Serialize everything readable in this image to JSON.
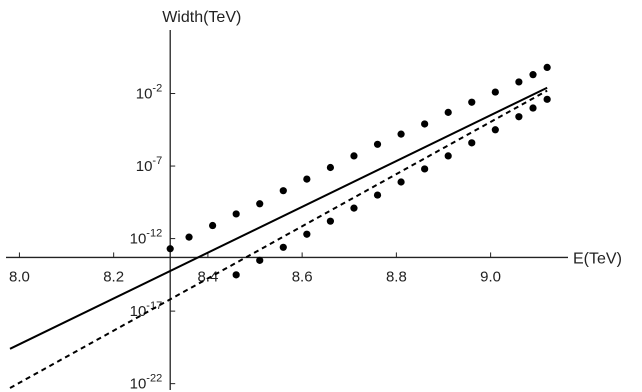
{
  "chart_data": {
    "type": "line",
    "xlabel": "E(TeV)",
    "ylabel": "Width(TeV)",
    "x_ticks": [
      {
        "value": 8.0,
        "label": "8.0"
      },
      {
        "value": 8.2,
        "label": "8.2"
      },
      {
        "value": 8.4,
        "label": "8.4"
      },
      {
        "value": 8.6,
        "label": "8.6"
      },
      {
        "value": 8.8,
        "label": "8.8"
      },
      {
        "value": 9.0,
        "label": "9.0"
      }
    ],
    "y_ticks": [
      {
        "value": -2,
        "base": "10",
        "exponent": "-2"
      },
      {
        "value": -7,
        "base": "10",
        "exponent": "-7"
      },
      {
        "value": -12,
        "base": "10",
        "exponent": "-12"
      },
      {
        "value": -17,
        "base": "10",
        "exponent": "-17"
      },
      {
        "value": -22,
        "base": "10",
        "exponent": "-22"
      }
    ],
    "xlim": [
      7.98,
      9.16
    ],
    "ylim_log10": [
      -22.3,
      1.0
    ],
    "y_scale": "log",
    "axis_crossing": {
      "x": 8.32,
      "y_log10": -13.3
    },
    "grid": false,
    "series": [
      {
        "style": "solid",
        "color": "#000000",
        "line": [
          [
            7.98,
            -19.6
          ],
          [
            9.12,
            -1.6
          ]
        ],
        "markers": [
          [
            8.32,
            -12.7
          ],
          [
            8.36,
            -11.9
          ],
          [
            8.41,
            -11.1
          ],
          [
            8.46,
            -10.3
          ],
          [
            8.51,
            -9.6
          ],
          [
            8.56,
            -8.7
          ],
          [
            8.61,
            -7.9
          ],
          [
            8.66,
            -7.1
          ],
          [
            8.71,
            -6.3
          ],
          [
            8.76,
            -5.5
          ],
          [
            8.81,
            -4.8
          ],
          [
            8.86,
            -4.1
          ],
          [
            8.91,
            -3.3
          ],
          [
            8.96,
            -2.6
          ],
          [
            9.01,
            -1.9
          ],
          [
            9.06,
            -1.2
          ],
          [
            9.09,
            -0.7
          ],
          [
            9.12,
            -0.2
          ]
        ]
      },
      {
        "style": "dashed",
        "color": "#000000",
        "line": [
          [
            7.98,
            -22.3
          ],
          [
            9.12,
            -1.8
          ]
        ],
        "markers": [
          [
            8.46,
            -14.5
          ],
          [
            8.51,
            -13.5
          ],
          [
            8.56,
            -12.6
          ],
          [
            8.61,
            -11.7
          ],
          [
            8.66,
            -10.8
          ],
          [
            8.71,
            -9.9
          ],
          [
            8.76,
            -9.0
          ],
          [
            8.81,
            -8.1
          ],
          [
            8.86,
            -7.2
          ],
          [
            8.91,
            -6.3
          ],
          [
            8.96,
            -5.4
          ],
          [
            9.01,
            -4.5
          ],
          [
            9.06,
            -3.6
          ],
          [
            9.09,
            -3.0
          ],
          [
            9.12,
            -2.4
          ]
        ]
      }
    ]
  }
}
